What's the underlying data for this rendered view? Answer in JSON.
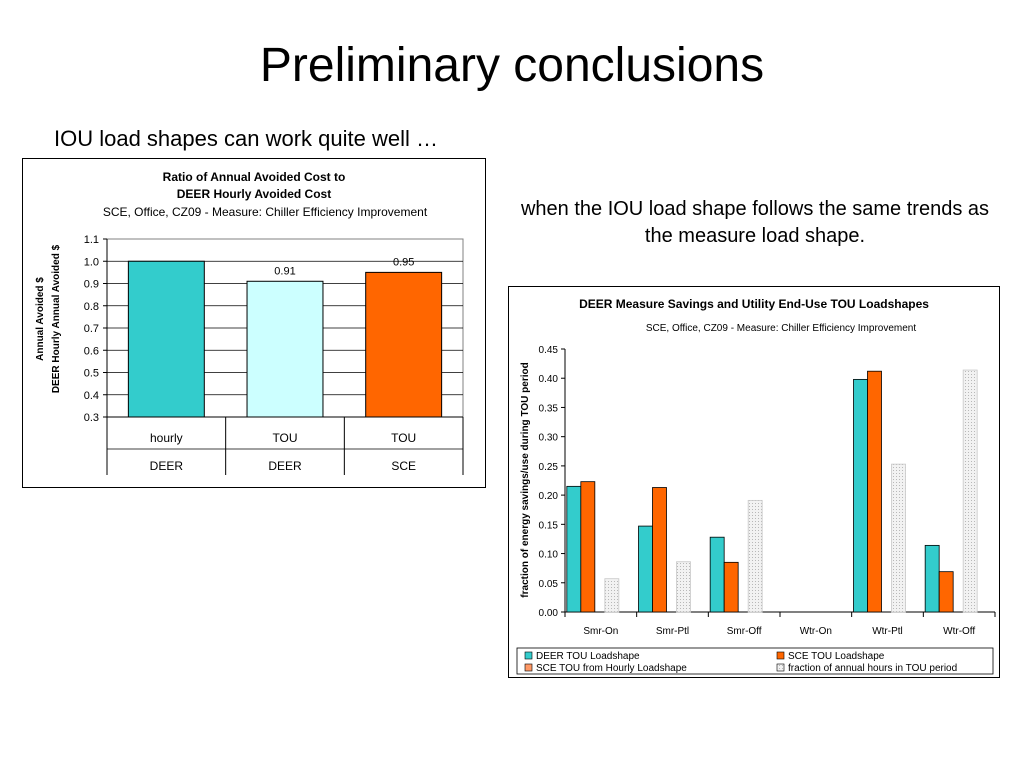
{
  "slide": {
    "title": "Preliminary conclusions",
    "subtitle": "IOU load shapes can work quite well …",
    "note": "when the IOU load shape follows the same trends as the measure load shape."
  },
  "chart_data": [
    {
      "type": "bar",
      "title": "Ratio of Annual Avoided Cost to",
      "title_line2": "DEER Hourly Avoided Cost",
      "subtitle": "SCE, Office, CZ09 - Measure: Chiller Efficiency Improvement",
      "ylabel": "Annual Avoided $",
      "ylabel_line2": "DEER Hourly Annual Avoided $",
      "ylim": [
        0.3,
        1.1
      ],
      "yticks": [
        "0.3",
        "0.4",
        "0.5",
        "0.6",
        "0.7",
        "0.8",
        "0.9",
        "1.0",
        "1.1"
      ],
      "categories": [
        "hourly",
        "TOU",
        "TOU"
      ],
      "category_groups": [
        "DEER",
        "DEER",
        "SCE"
      ],
      "values": [
        1.0,
        0.91,
        0.95
      ],
      "data_labels": [
        "",
        "0.91",
        "0.95"
      ],
      "colors": [
        "#33CCCC",
        "#CCFFFF",
        "#FF6600"
      ],
      "grid": true
    },
    {
      "type": "bar",
      "title": "DEER Measure Savings and Utility End-Use TOU Loadshapes",
      "subtitle": "SCE, Office, CZ09 - Measure: Chiller Efficiency Improvement",
      "ylabel": "fraction of energy savings/use during TOU period",
      "ylim": [
        0,
        0.45
      ],
      "yticks": [
        "0.00",
        "0.05",
        "0.10",
        "0.15",
        "0.20",
        "0.25",
        "0.30",
        "0.35",
        "0.40",
        "0.45"
      ],
      "categories": [
        "Smr-On",
        "Smr-Ptl",
        "Smr-Off",
        "Wtr-On",
        "Wtr-Ptl",
        "Wtr-Off"
      ],
      "series": [
        {
          "name": "DEER TOU Loadshape",
          "color": "#33CCCC",
          "values": [
            0.215,
            0.147,
            0.128,
            0,
            0.398,
            0.114
          ]
        },
        {
          "name": "SCE TOU Loadshape",
          "color": "#FF6600",
          "values": [
            0.223,
            0.213,
            0.085,
            0,
            0.412,
            0.069
          ]
        },
        {
          "name": "SCE TOU from Hourly Loadshape",
          "color": "#FF9966",
          "values": [
            0,
            0,
            0,
            0,
            0,
            0
          ]
        },
        {
          "name": "fraction of annual hours in TOU period",
          "color": "#E6E6E6",
          "values": [
            0.057,
            0.086,
            0.191,
            0,
            0.253,
            0.414
          ]
        }
      ],
      "legend_position": "bottom",
      "grid": false
    }
  ]
}
